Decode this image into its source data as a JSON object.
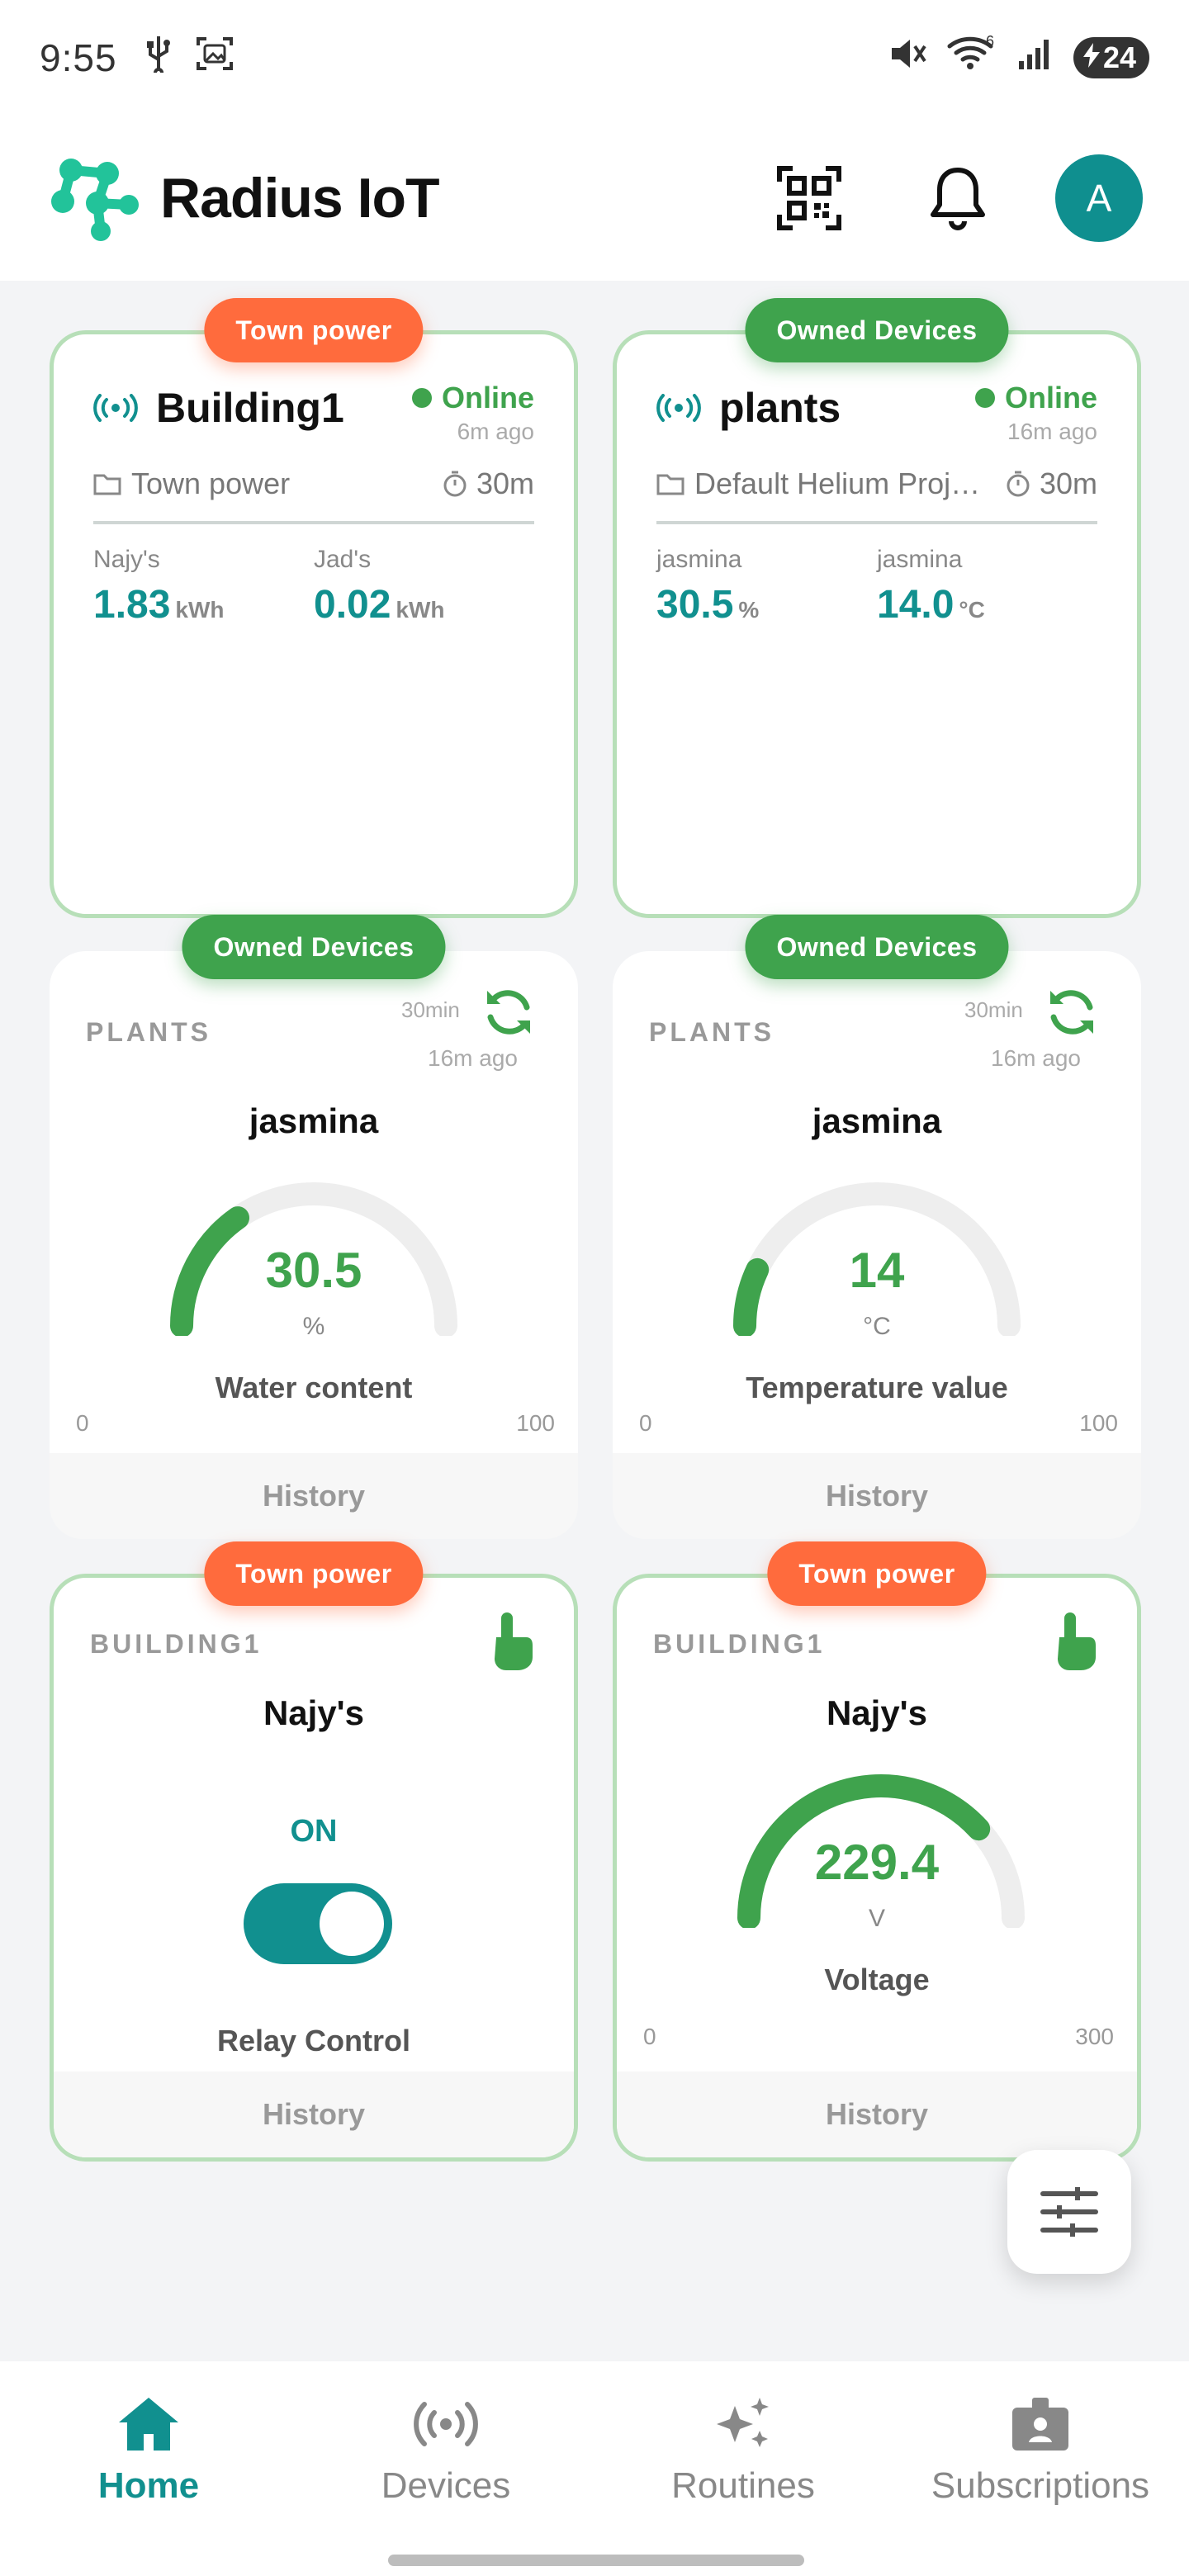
{
  "status_bar": {
    "time": "9:55",
    "battery": "24"
  },
  "app": {
    "title": "Radius IoT",
    "avatar_letter": "A",
    "accent": "#11908f"
  },
  "cards": [
    {
      "badge": "Town power",
      "name": "Building1",
      "status": "Online",
      "ago": "6m ago",
      "folder": "Town power",
      "interval": "30m",
      "values": [
        {
          "label": "Najy's",
          "value": "1.83",
          "unit": "kWh"
        },
        {
          "label": "Jad's",
          "value": "0.02",
          "unit": "kWh"
        }
      ]
    },
    {
      "badge": "Owned Devices",
      "name": "plants",
      "status": "Online",
      "ago": "16m ago",
      "folder": "Default Helium Proj…",
      "interval": "30m",
      "values": [
        {
          "label": "jasmina",
          "value": "30.5",
          "unit": "%"
        },
        {
          "label": "jasmina",
          "value": "14.0",
          "unit": "°C"
        }
      ]
    }
  ],
  "widgets": [
    {
      "badge": "Owned Devices",
      "category": "PLANTS",
      "interval": "30min",
      "ago": "16m ago",
      "title": "jasmina",
      "value": "30.5",
      "unit": "%",
      "label": "Water content",
      "min": "0",
      "max": "100",
      "fraction": 0.305,
      "history": "History"
    },
    {
      "badge": "Owned Devices",
      "category": "PLANTS",
      "interval": "30min",
      "ago": "16m ago",
      "title": "jasmina",
      "value": "14",
      "unit": "°C",
      "label": "Temperature value",
      "min": "0",
      "max": "100",
      "fraction": 0.14,
      "history": "History"
    },
    {
      "badge": "Town power",
      "category": "BUILDING1",
      "title": "Najy's",
      "state": "ON",
      "label": "Relay Control",
      "history": "History"
    },
    {
      "badge": "Town power",
      "category": "BUILDING1",
      "title": "Najy's",
      "value": "229.4",
      "unit": "V",
      "label": "Voltage",
      "min": "0",
      "max": "300",
      "fraction": 0.7647,
      "history": "History"
    }
  ],
  "bottom_nav": [
    {
      "label": "Home",
      "icon": "home-icon",
      "active": true
    },
    {
      "label": "Devices",
      "icon": "devices-icon",
      "active": false
    },
    {
      "label": "Routines",
      "icon": "sparkle-icon",
      "active": false
    },
    {
      "label": "Subscriptions",
      "icon": "badge-icon",
      "active": false
    }
  ]
}
